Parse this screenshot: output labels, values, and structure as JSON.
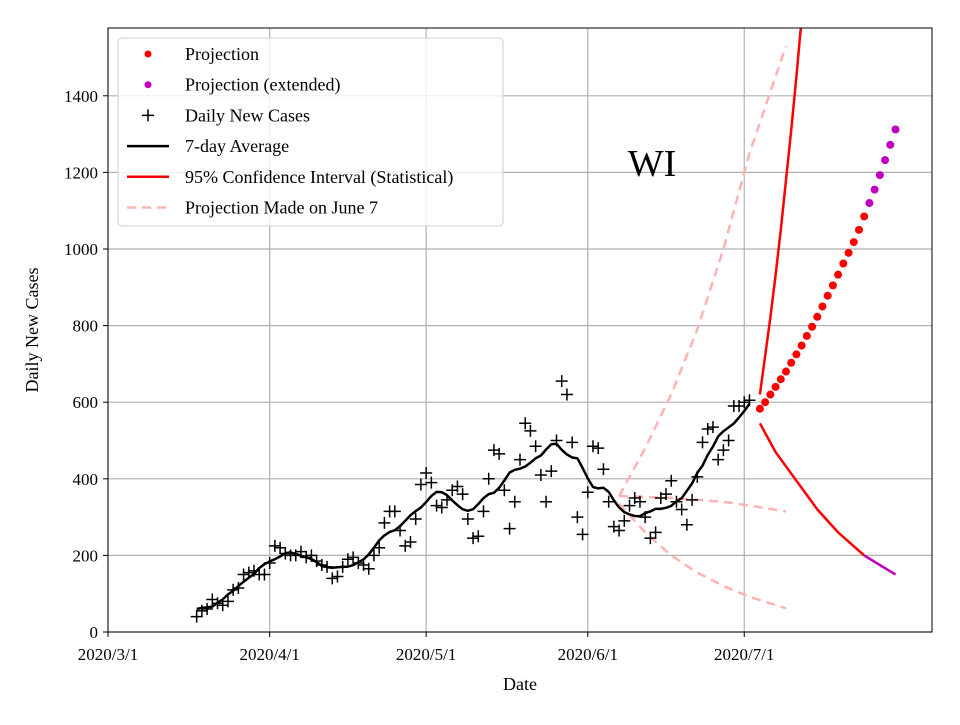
{
  "chart_data": {
    "type": "line",
    "title": "",
    "annotation": "WI",
    "xlabel": "Date",
    "ylabel": "Daily New Cases",
    "xlim": [
      "2020-03-01",
      "2020-08-06"
    ],
    "ylim": [
      0,
      1577
    ],
    "grid": true,
    "legend_placement": "top-left",
    "x_ticks": [
      {
        "date": "2020-03-01",
        "label": "2020/3/1"
      },
      {
        "date": "2020-04-01",
        "label": "2020/4/1"
      },
      {
        "date": "2020-05-01",
        "label": "2020/5/1"
      },
      {
        "date": "2020-06-01",
        "label": "2020/6/1"
      },
      {
        "date": "2020-07-01",
        "label": "2020/7/1"
      }
    ],
    "y_ticks": [
      0,
      200,
      400,
      600,
      800,
      1000,
      1200,
      1400
    ],
    "legend": [
      {
        "label": "Projection",
        "kind": "dot",
        "color": "#ff0000"
      },
      {
        "label": "Projection (extended)",
        "kind": "dot",
        "color": "#c000c0"
      },
      {
        "label": "Daily New Cases",
        "kind": "plus",
        "color": "#000000"
      },
      {
        "label": "7-day Average",
        "kind": "line",
        "color": "#000000"
      },
      {
        "label": "95% Confidence Interval (Statistical)",
        "kind": "line",
        "color": "#ff0000"
      },
      {
        "label": "Projection Made on June 7",
        "kind": "dash",
        "color": "#ffb3b3"
      }
    ],
    "daily_new_cases": {
      "dates": [
        "2020-03-18",
        "2020-03-19",
        "2020-03-20",
        "2020-03-21",
        "2020-03-22",
        "2020-03-23",
        "2020-03-24",
        "2020-03-25",
        "2020-03-26",
        "2020-03-27",
        "2020-03-28",
        "2020-03-29",
        "2020-03-30",
        "2020-03-31",
        "2020-04-01",
        "2020-04-02",
        "2020-04-03",
        "2020-04-04",
        "2020-04-05",
        "2020-04-06",
        "2020-04-07",
        "2020-04-08",
        "2020-04-09",
        "2020-04-10",
        "2020-04-11",
        "2020-04-12",
        "2020-04-13",
        "2020-04-14",
        "2020-04-15",
        "2020-04-16",
        "2020-04-17",
        "2020-04-18",
        "2020-04-19",
        "2020-04-20",
        "2020-04-21",
        "2020-04-22",
        "2020-04-23",
        "2020-04-24",
        "2020-04-25",
        "2020-04-26",
        "2020-04-27",
        "2020-04-28",
        "2020-04-29",
        "2020-04-30",
        "2020-05-01",
        "2020-05-02",
        "2020-05-03",
        "2020-05-04",
        "2020-05-05",
        "2020-05-06",
        "2020-05-07",
        "2020-05-08",
        "2020-05-09",
        "2020-05-10",
        "2020-05-11",
        "2020-05-12",
        "2020-05-13",
        "2020-05-14",
        "2020-05-15",
        "2020-05-16",
        "2020-05-17",
        "2020-05-18",
        "2020-05-19",
        "2020-05-20",
        "2020-05-21",
        "2020-05-22",
        "2020-05-23",
        "2020-05-24",
        "2020-05-25",
        "2020-05-26",
        "2020-05-27",
        "2020-05-28",
        "2020-05-29",
        "2020-05-30",
        "2020-05-31",
        "2020-06-01",
        "2020-06-02",
        "2020-06-03",
        "2020-06-04",
        "2020-06-05",
        "2020-06-06",
        "2020-06-07",
        "2020-06-08",
        "2020-06-09",
        "2020-06-10",
        "2020-06-11",
        "2020-06-12",
        "2020-06-13",
        "2020-06-14",
        "2020-06-15",
        "2020-06-16",
        "2020-06-17",
        "2020-06-18",
        "2020-06-19",
        "2020-06-20",
        "2020-06-21",
        "2020-06-22",
        "2020-06-23",
        "2020-06-24",
        "2020-06-25",
        "2020-06-26",
        "2020-06-27",
        "2020-06-28",
        "2020-06-29",
        "2020-06-30",
        "2020-07-01",
        "2020-07-02"
      ],
      "values": [
        40,
        55,
        60,
        85,
        75,
        70,
        80,
        110,
        115,
        150,
        155,
        160,
        150,
        150,
        180,
        225,
        220,
        205,
        200,
        200,
        210,
        195,
        200,
        185,
        175,
        170,
        140,
        145,
        170,
        190,
        195,
        180,
        175,
        165,
        200,
        220,
        285,
        315,
        315,
        265,
        225,
        235,
        295,
        385,
        415,
        390,
        330,
        325,
        345,
        370,
        380,
        360,
        295,
        245,
        250,
        315,
        400,
        475,
        465,
        370,
        270,
        340,
        450,
        545,
        525,
        485,
        410,
        340,
        420,
        500,
        655,
        620,
        495,
        300,
        255,
        365,
        485,
        480,
        425,
        340,
        275,
        265,
        290,
        330,
        350,
        340,
        300,
        245,
        260,
        350,
        360,
        395,
        340,
        320,
        280,
        345,
        405,
        495,
        530,
        535,
        450,
        475,
        500,
        590,
        590,
        600,
        605
      ]
    },
    "projection": {
      "dates": [
        "2020-07-04",
        "2020-07-05",
        "2020-07-06",
        "2020-07-07",
        "2020-07-08",
        "2020-07-09",
        "2020-07-10",
        "2020-07-11",
        "2020-07-12",
        "2020-07-13",
        "2020-07-14",
        "2020-07-15",
        "2020-07-16",
        "2020-07-17",
        "2020-07-18",
        "2020-07-19",
        "2020-07-20",
        "2020-07-21",
        "2020-07-22",
        "2020-07-23",
        "2020-07-24"
      ],
      "values": [
        583,
        600,
        620,
        640,
        660,
        680,
        703,
        725,
        748,
        773,
        797,
        823,
        850,
        878,
        905,
        933,
        962,
        990,
        1018,
        1050,
        1085
      ]
    },
    "projection_extended": {
      "dates": [
        "2020-07-25",
        "2020-07-26",
        "2020-07-27",
        "2020-07-28",
        "2020-07-29",
        "2020-07-30"
      ],
      "values": [
        1120,
        1155,
        1193,
        1232,
        1272,
        1312
      ]
    },
    "ci_upper": {
      "dates": [
        "2020-07-04",
        "2020-07-05",
        "2020-07-06",
        "2020-07-07",
        "2020-07-08",
        "2020-07-09",
        "2020-07-10",
        "2020-07-11",
        "2020-07-12",
        "2020-07-13"
      ],
      "values": [
        620,
        720,
        820,
        930,
        1050,
        1180,
        1310,
        1450,
        1600,
        1760
      ]
    },
    "ci_lower": {
      "dates": [
        "2020-07-04",
        "2020-07-07",
        "2020-07-11",
        "2020-07-15",
        "2020-07-19",
        "2020-07-24"
      ],
      "values": [
        545,
        470,
        395,
        320,
        260,
        200
      ]
    },
    "ci_lower_extended": {
      "dates": [
        "2020-07-24",
        "2020-07-27",
        "2020-07-30"
      ],
      "values": [
        200,
        175,
        150
      ]
    },
    "june7_projection": {
      "upper": {
        "dates": [
          "2020-06-07",
          "2020-06-12",
          "2020-06-17",
          "2020-06-22",
          "2020-06-27",
          "2020-07-02",
          "2020-07-09"
        ],
        "values": [
          355,
          480,
          620,
          790,
          1000,
          1250,
          1530
        ]
      },
      "middle": {
        "dates": [
          "2020-06-07",
          "2020-06-17",
          "2020-06-27",
          "2020-07-02",
          "2020-07-09"
        ],
        "values": [
          355,
          350,
          340,
          330,
          315
        ]
      },
      "lower": {
        "dates": [
          "2020-06-07",
          "2020-06-12",
          "2020-06-17",
          "2020-06-22",
          "2020-06-27",
          "2020-07-02",
          "2020-07-09"
        ],
        "values": [
          335,
          260,
          200,
          155,
          120,
          92,
          62
        ]
      }
    }
  }
}
